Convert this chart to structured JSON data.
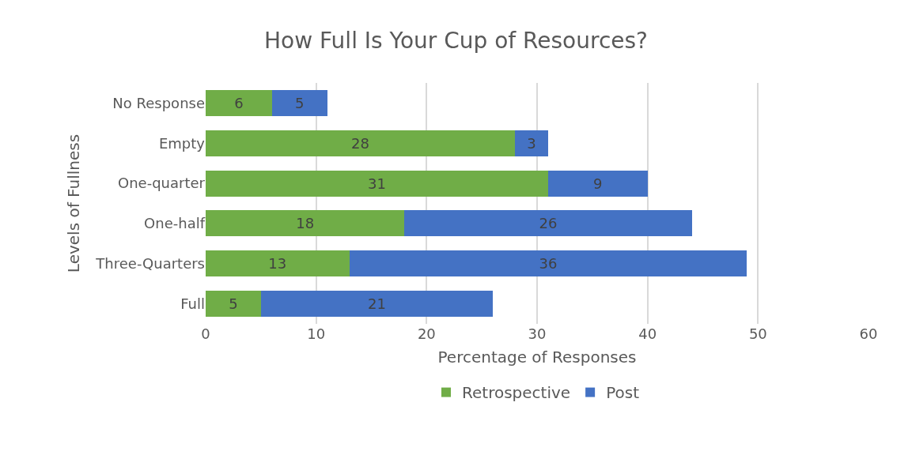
{
  "chart_data": {
    "type": "bar",
    "orientation": "horizontal",
    "stacked": true,
    "title": "How Full Is Your Cup of Resources?",
    "xlabel": "Percentage of Responses",
    "ylabel": "Levels of Fullness",
    "categories": [
      "No Response",
      "Empty",
      "One-quarter",
      "One-half",
      "Three-Quarters",
      "Full"
    ],
    "series": [
      {
        "name": "Retrospective",
        "color": "#70ad47",
        "values": [
          6,
          28,
          31,
          18,
          13,
          5
        ]
      },
      {
        "name": "Post",
        "color": "#4472c4",
        "values": [
          5,
          3,
          9,
          26,
          36,
          21
        ]
      }
    ],
    "xlim": [
      0,
      60
    ],
    "xticks": [
      0,
      10,
      20,
      30,
      40,
      50,
      60
    ],
    "grid": "x",
    "legend": "bottom",
    "data_labels": true
  }
}
